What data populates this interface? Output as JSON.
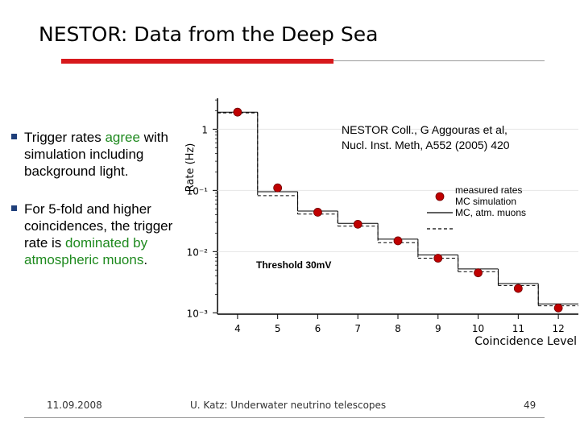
{
  "slide": {
    "title": "NESTOR: Data from the Deep Sea",
    "bullets": [
      {
        "parts": [
          {
            "text": "Trigger rates ",
            "color": "black"
          },
          {
            "text": "agree",
            "color": "green"
          },
          {
            "text": " with simulation including background light.",
            "color": "black"
          }
        ]
      },
      {
        "parts": [
          {
            "text": "For 5-fold and higher coincidences, the trigger rate is ",
            "color": "black"
          },
          {
            "text": "dominated by atmospheric muons",
            "color": "green"
          },
          {
            "text": ".",
            "color": "black"
          }
        ]
      }
    ],
    "citation_line1": "NESTOR Coll., G Aggouras et al,",
    "citation_line2": "Nucl. Inst. Meth, A552 (2005) 420",
    "threshold_label": "Threshold 30mV",
    "footer": {
      "date": "11.09.2008",
      "center": "U. Katz: Underwater neutrino telescopes",
      "page": "49"
    },
    "colors": {
      "accent_red": "#d7191c",
      "text_green": "#1f8a1f",
      "bullet_blue": "#1f3f7a"
    }
  },
  "chart_data": {
    "type": "scatter",
    "xlabel": "Coincidence Level",
    "ylabel": "Rate (Hz)",
    "x": [
      4,
      5,
      6,
      7,
      8,
      9,
      10,
      11,
      12
    ],
    "xlim": [
      3.5,
      12.5
    ],
    "ylim": [
      0.00095,
      3.2
    ],
    "yscale": "log",
    "x_ticks": [
      "4",
      "5",
      "6",
      "7",
      "8",
      "9",
      "10",
      "11",
      "12"
    ],
    "y_ticks": [
      {
        "value": 1,
        "label": "1"
      },
      {
        "value": 0.1,
        "label": "10⁻¹"
      },
      {
        "value": 0.01,
        "label": "10⁻²"
      },
      {
        "value": 0.001,
        "label": "10⁻³"
      }
    ],
    "legend_placement": "top-right",
    "legend": [
      "measured rates",
      "MC simulation",
      "MC, atm. muons"
    ],
    "series": [
      {
        "name": "measured rates",
        "style": "red-points",
        "values": [
          1.9,
          0.11,
          0.044,
          0.028,
          0.015,
          0.0078,
          0.0045,
          0.0025,
          0.0012
        ]
      },
      {
        "name": "MC simulation",
        "style": "solid-step",
        "values": [
          1.9,
          0.095,
          0.046,
          0.029,
          0.016,
          0.0088,
          0.0052,
          0.003,
          0.0014
        ]
      },
      {
        "name": "MC, atm. muons",
        "style": "dashed-step",
        "values": [
          1.85,
          0.082,
          0.041,
          0.026,
          0.014,
          0.0078,
          0.0047,
          0.0028,
          0.0013
        ]
      }
    ]
  }
}
